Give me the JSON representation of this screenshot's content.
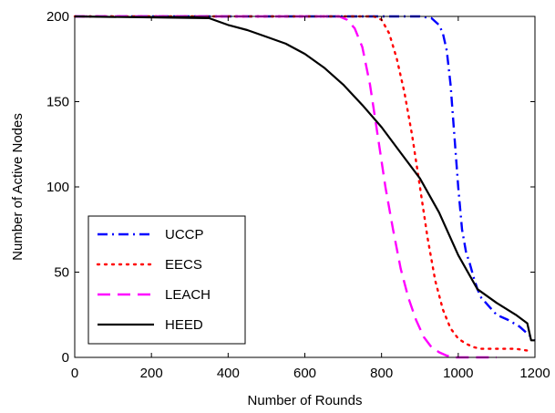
{
  "chart_data": {
    "type": "line",
    "title": "",
    "xlabel": "Number of Rounds",
    "ylabel": "Number of Active Nodes",
    "xlim": [
      0,
      1200
    ],
    "ylim": [
      0,
      200
    ],
    "xticks": [
      0,
      200,
      400,
      600,
      800,
      1000,
      1200
    ],
    "yticks": [
      0,
      50,
      100,
      150,
      200
    ],
    "xtick_labels": [
      "0",
      "200",
      "400",
      "600",
      "800",
      "1000",
      "1200"
    ],
    "ytick_labels": [
      "0",
      "50",
      "100",
      "150",
      "200"
    ],
    "grid": false,
    "legend_position": "bottom-left",
    "series": [
      {
        "name": "UCCP",
        "color": "#0000ff",
        "dash": "dash-dot",
        "x": [
          0,
          900,
          930,
          950,
          960,
          970,
          980,
          990,
          1000,
          1010,
          1020,
          1030,
          1040,
          1050,
          1060,
          1080,
          1100,
          1130,
          1160,
          1190,
          1200
        ],
        "y": [
          200,
          200,
          199,
          195,
          190,
          180,
          160,
          130,
          100,
          75,
          62,
          55,
          47,
          40,
          35,
          30,
          25,
          22,
          18,
          12,
          10
        ]
      },
      {
        "name": "EECS",
        "color": "#ff0000",
        "dash": "dotted",
        "x": [
          0,
          780,
          800,
          820,
          840,
          860,
          880,
          900,
          920,
          940,
          960,
          980,
          1000,
          1020,
          1040,
          1060,
          1100,
          1150,
          1180
        ],
        "y": [
          200,
          200,
          198,
          190,
          175,
          155,
          130,
          100,
          70,
          45,
          28,
          17,
          11,
          8,
          6,
          5,
          5,
          5,
          4
        ]
      },
      {
        "name": "LEACH",
        "color": "#ff00ff",
        "dash": "dashed",
        "x": [
          0,
          690,
          710,
          730,
          750,
          770,
          790,
          810,
          830,
          850,
          870,
          890,
          910,
          930,
          950,
          970,
          990,
          1010,
          1050,
          1100
        ],
        "y": [
          200,
          200,
          198,
          193,
          182,
          160,
          130,
          100,
          75,
          52,
          35,
          22,
          12,
          6,
          3,
          1,
          0,
          0,
          0,
          0
        ]
      },
      {
        "name": "HEED",
        "color": "#000000",
        "dash": "solid",
        "x": [
          0,
          350,
          400,
          450,
          500,
          550,
          600,
          650,
          700,
          750,
          800,
          850,
          900,
          950,
          1000,
          1050,
          1100,
          1150,
          1180,
          1190,
          1200
        ],
        "y": [
          200,
          199,
          195,
          192,
          188,
          184,
          178,
          170,
          160,
          148,
          135,
          120,
          105,
          85,
          60,
          40,
          32,
          25,
          20,
          10,
          10
        ]
      }
    ]
  }
}
